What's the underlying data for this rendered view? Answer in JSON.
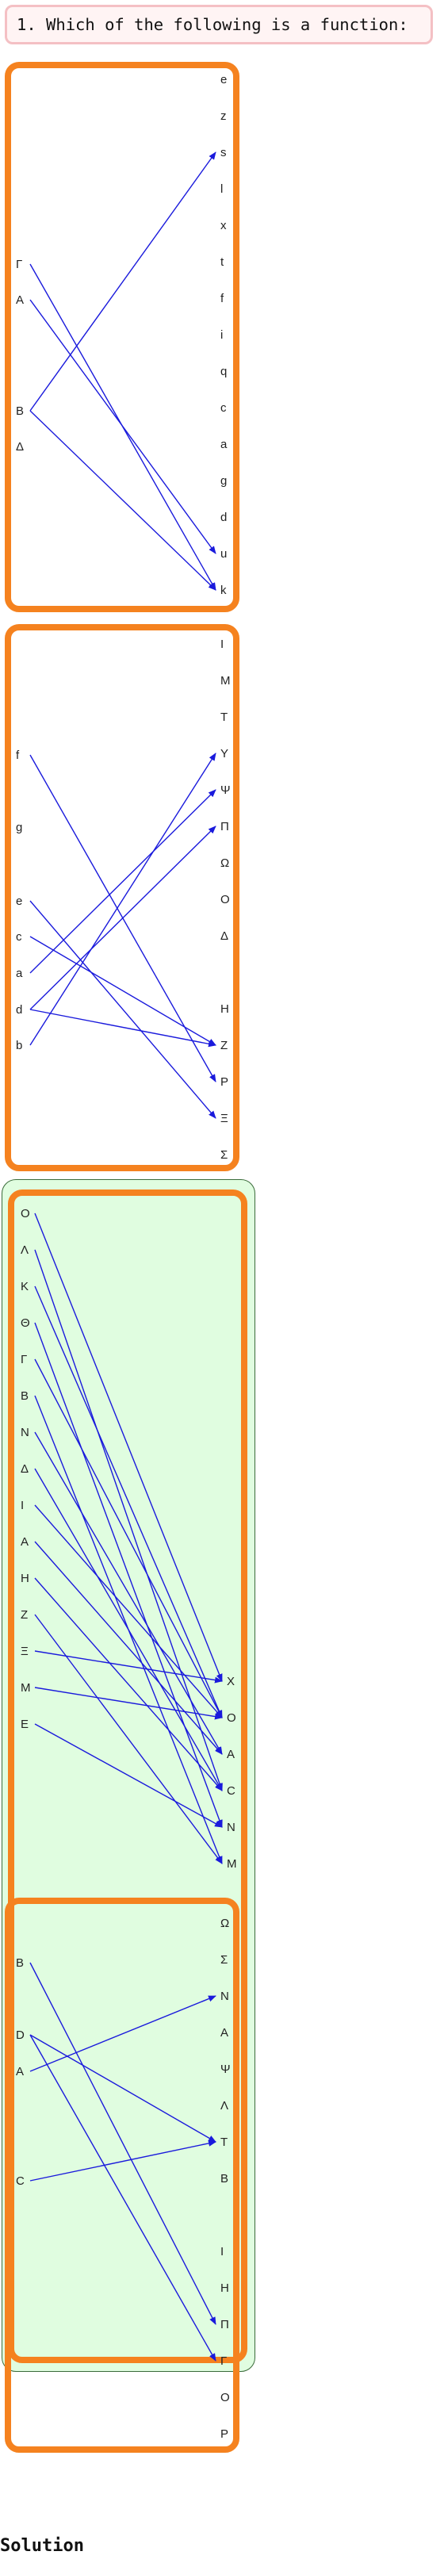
{
  "question": {
    "text": "1. Which of the following is a function:"
  },
  "colors": {
    "border": "#f5821f",
    "arrow": "#1a1adc",
    "selected_background": "#e0fde0"
  },
  "options": [
    {
      "id": "option-1",
      "selected": false,
      "domain": [
        "Γ",
        "A",
        "B",
        "Δ"
      ],
      "codomain": [
        "e",
        "z",
        "s",
        "l",
        "x",
        "t",
        "f",
        "i",
        "q",
        "c",
        "a",
        "g",
        "d",
        "u",
        "k"
      ],
      "mappings": [
        [
          "Γ",
          "k"
        ],
        [
          "A",
          "u"
        ],
        [
          "B",
          "s"
        ],
        [
          "B",
          "k"
        ]
      ]
    },
    {
      "id": "option-2",
      "selected": false,
      "domain": [
        "f",
        "g",
        "e",
        "c",
        "a",
        "d",
        "b"
      ],
      "codomain": [
        "I",
        "M",
        "T",
        "Y",
        "Ψ",
        "Π",
        "Ω",
        "O",
        "Δ",
        "H",
        "Z",
        "P",
        "Ξ",
        "Σ"
      ],
      "mappings": [
        [
          "f",
          "P"
        ],
        [
          "e",
          "Ξ"
        ],
        [
          "c",
          "Z"
        ],
        [
          "a",
          "Ψ"
        ],
        [
          "d",
          "Π"
        ],
        [
          "d",
          "Z"
        ],
        [
          "b",
          "Y"
        ]
      ]
    },
    {
      "id": "option-3",
      "selected": true,
      "domain": [
        "O",
        "Λ",
        "K",
        "Θ",
        "Γ",
        "B",
        "N",
        "Δ",
        "I",
        "A",
        "H",
        "Z",
        "Ξ",
        "M",
        "E"
      ],
      "codomain": [
        "X",
        "O",
        "A",
        "C",
        "N",
        "M"
      ],
      "mappings": [
        [
          "O",
          "X"
        ],
        [
          "Λ",
          "C"
        ],
        [
          "K",
          "O"
        ],
        [
          "Θ",
          "N"
        ],
        [
          "Γ",
          "O"
        ],
        [
          "B",
          "M"
        ],
        [
          "N",
          "A"
        ],
        [
          "Δ",
          "C"
        ],
        [
          "I",
          "O"
        ],
        [
          "A",
          "A"
        ],
        [
          "H",
          "C"
        ],
        [
          "Z",
          "M"
        ],
        [
          "Ξ",
          "X"
        ],
        [
          "M",
          "O"
        ],
        [
          "E",
          "N"
        ]
      ]
    },
    {
      "id": "option-4",
      "selected": false,
      "domain": [
        "B",
        "D",
        "A",
        "C"
      ],
      "codomain": [
        "Ω",
        "Σ",
        "N",
        "A",
        "Ψ",
        "Λ",
        "T",
        "B",
        "I",
        "H",
        "Π",
        "Γ",
        "O",
        "P"
      ],
      "mappings": [
        [
          "B",
          "Π"
        ],
        [
          "D",
          "T"
        ],
        [
          "D",
          "Γ"
        ],
        [
          "A",
          "N"
        ],
        [
          "C",
          "T"
        ]
      ]
    }
  ],
  "solution": {
    "label": "Solution"
  }
}
